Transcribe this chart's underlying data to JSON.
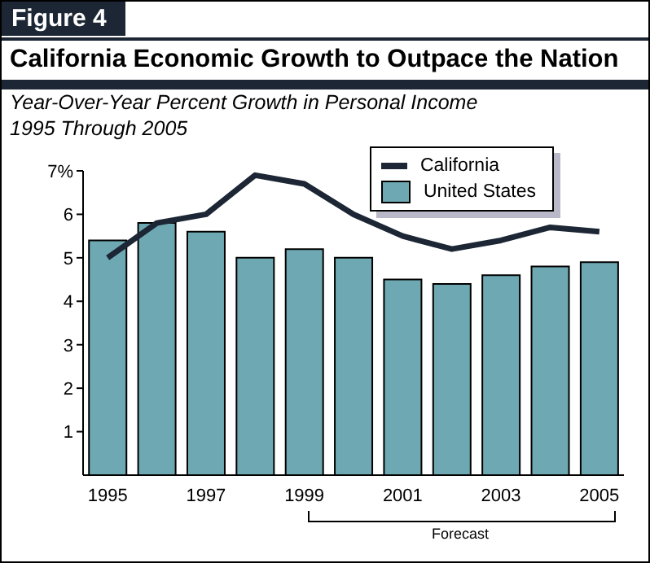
{
  "chart_data": {
    "type": "bar",
    "title": "California Economic Growth to Outpace the Nation",
    "subtitle": "Year-Over-Year Percent Growth in Personal Income\n1995 Through 2005",
    "annotations": [
      "Figure 4",
      "Forecast"
    ],
    "categories": [
      "1995",
      null,
      "1997",
      null,
      "1999",
      null,
      "2001",
      null,
      "2003",
      null,
      "2005"
    ],
    "series": [
      {
        "name": "California",
        "type": "line",
        "color": "#1c2634",
        "values": [
          5.0,
          5.8,
          6.0,
          6.9,
          6.7,
          6.0,
          5.5,
          5.2,
          5.4,
          5.7,
          5.6
        ]
      },
      {
        "name": "United States",
        "color": "#6ea9b3",
        "values": [
          5.4,
          5.8,
          5.6,
          5.0,
          5.2,
          5.0,
          4.5,
          4.4,
          4.6,
          4.8,
          4.9
        ]
      }
    ],
    "ylim": [
      0,
      7
    ],
    "yticks": [
      1,
      2,
      3,
      4,
      5,
      6,
      {
        "value": 7,
        "label": "7%"
      }
    ],
    "grid": false,
    "legend": "top right",
    "marker": "none",
    "line_style": "solid"
  }
}
